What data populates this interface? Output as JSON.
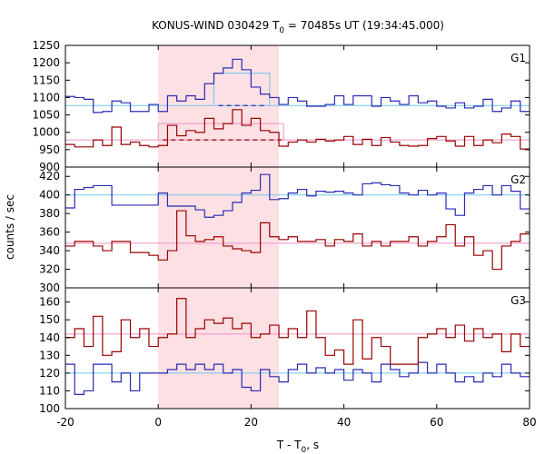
{
  "chart_data": {
    "type": "line",
    "title_main": "KONUS-WIND 030429 T",
    "title_sub": "0",
    "title_rest": " = 70485s UT (19:34:45.000)",
    "xlabel_main": "T - T",
    "xlabel_sub": "0",
    "xlabel_rest": ", s",
    "ylabel": "counts / sec",
    "xlim": [
      -20,
      80
    ],
    "x_ticks": [
      "-20",
      "0",
      "20",
      "40",
      "60",
      "80"
    ],
    "shaded_interval": [
      0,
      26
    ],
    "colors": {
      "blue": "#2a2ab4",
      "red": "#9a0000",
      "light_blue": "#6ec8ee",
      "pink": "#ee90c8",
      "shade": "#fde0e3"
    },
    "bin_edges": [
      -20,
      -18,
      -16,
      -14,
      -12,
      -10,
      -8,
      -6,
      -4,
      -2,
      0,
      2,
      4,
      6,
      8,
      10,
      12,
      14,
      16,
      18,
      20,
      22,
      24,
      26,
      28,
      30,
      32,
      34,
      36,
      38,
      40,
      42,
      44,
      46,
      48,
      50,
      52,
      54,
      56,
      58,
      60,
      62,
      64,
      66,
      68,
      70,
      72,
      74,
      76,
      78,
      80
    ],
    "panels": [
      {
        "label": "G1",
        "ylim": [
          900,
          1250
        ],
        "y_ticks": [
          "900",
          "950",
          "1000",
          "1050",
          "1100",
          "1150",
          "1200",
          "1250"
        ],
        "series": [
          {
            "color": "blue",
            "values": [
              1103,
              1100,
              1095,
              1057,
              1060,
              1090,
              1085,
              1060,
              1060,
              1080,
              1060,
              1105,
              1090,
              1105,
              1095,
              1140,
              1170,
              1185,
              1210,
              1180,
              1130,
              1110,
              1100,
              1080,
              1100,
              1090,
              1075,
              1075,
              1080,
              1105,
              1080,
              1105,
              1105,
              1075,
              1100,
              1090,
              1080,
              1105,
              1085,
              1090,
              1075,
              1070,
              1085,
              1070,
              1075,
              1095,
              1060,
              1070,
              1090,
              1060
            ]
          },
          {
            "color": "red",
            "values": [
              965,
              958,
              958,
              978,
              962,
              1015,
              965,
              972,
              962,
              958,
              962,
              1020,
              990,
              1005,
              1000,
              1040,
              1010,
              1025,
              1065,
              1020,
              1040,
              1005,
              1000,
              960,
              972,
              978,
              972,
              980,
              975,
              978,
              988,
              965,
              980,
              962,
              985,
              972,
              962,
              960,
              962,
              982,
              988,
              975,
              960,
              988,
              962,
              978,
              970,
              995,
              988,
              952
            ]
          }
        ],
        "background_levels": [
          {
            "color": "light_blue",
            "value": 1077
          },
          {
            "color": "pink",
            "value": 978
          }
        ],
        "burst_levels": [
          {
            "color": "light_blue",
            "x": [
              12,
              24
            ],
            "value": 1170,
            "baseline": 1077,
            "drop_to": 1077
          },
          {
            "color": "pink",
            "x": [
              0,
              27
            ],
            "value": 1025,
            "baseline": 978,
            "drop_to": 978
          }
        ]
      },
      {
        "label": "G2",
        "ylim": [
          300,
          430
        ],
        "y_ticks": [
          "300",
          "320",
          "340",
          "360",
          "380",
          "400",
          "420"
        ],
        "series": [
          {
            "color": "blue",
            "values": [
              386,
              406,
              408,
              410,
              410,
              389,
              389,
              389,
              389,
              389,
              402,
              388,
              388,
              388,
              384,
              376,
              378,
              383,
              392,
              402,
              405,
              422,
              395,
              396,
              402,
              406,
              399,
              404,
              403,
              404,
              402,
              400,
              412,
              413,
              411,
              410,
              402,
              400,
              405,
              400,
              402,
              385,
              378,
              402,
              406,
              410,
              400,
              410,
              404,
              385
            ]
          },
          {
            "color": "red",
            "values": [
              345,
              350,
              350,
              345,
              340,
              350,
              350,
              338,
              338,
              335,
              330,
              340,
              383,
              356,
              350,
              352,
              355,
              345,
              342,
              340,
              338,
              370,
              355,
              352,
              355,
              350,
              350,
              352,
              345,
              352,
              350,
              358,
              345,
              350,
              345,
              350,
              350,
              355,
              345,
              350,
              355,
              368,
              345,
              355,
              335,
              340,
              320,
              345,
              350,
              358
            ]
          }
        ],
        "background_levels": [
          {
            "color": "light_blue",
            "value": 400
          },
          {
            "color": "pink",
            "value": 348
          }
        ]
      },
      {
        "label": "G3",
        "ylim": [
          100,
          168
        ],
        "y_ticks": [
          "100",
          "110",
          "120",
          "130",
          "140",
          "150",
          "160"
        ],
        "series": [
          {
            "color": "blue",
            "values": [
              125,
              108,
              110,
              125,
              125,
              115,
              120,
              110,
              120,
              120,
              120,
              122,
              125,
              122,
              125,
              122,
              125,
              120,
              122,
              112,
              110,
              122,
              118,
              115,
              122,
              125,
              120,
              123,
              120,
              122,
              116,
              122,
              120,
              115,
              125,
              122,
              118,
              120,
              126,
              120,
              125,
              120,
              115,
              118,
              115,
              120,
              118,
              125,
              120,
              118
            ]
          },
          {
            "color": "red",
            "values": [
              140,
              145,
              135,
              152,
              130,
              132,
              150,
              140,
              145,
              135,
              140,
              142,
              162,
              140,
              145,
              150,
              148,
              151,
              145,
              148,
              140,
              142,
              147,
              140,
              145,
              140,
              155,
              140,
              130,
              133,
              125,
              150,
              128,
              140,
              135,
              125,
              125,
              125,
              140,
              142,
              145,
              140,
              147,
              138,
              145,
              140,
              142,
              132,
              142,
              135
            ]
          }
        ],
        "background_levels": [
          {
            "color": "light_blue",
            "value": 120
          },
          {
            "color": "pink",
            "value": 142
          }
        ]
      }
    ]
  }
}
